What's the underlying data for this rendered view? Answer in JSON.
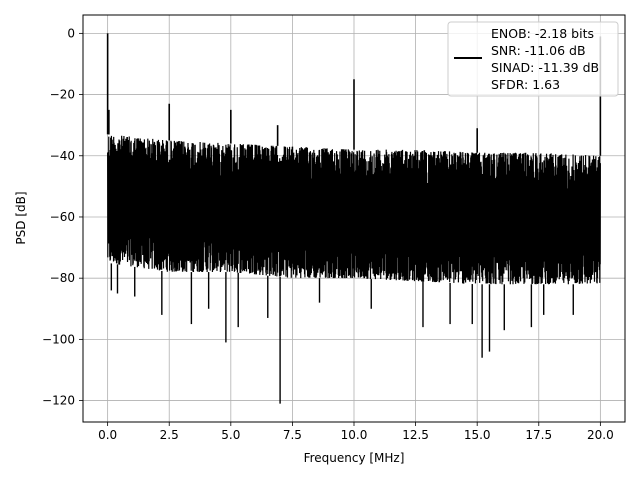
{
  "chart_data": {
    "type": "line",
    "xlabel": "Frequency [MHz]",
    "ylabel": "PSD [dB]",
    "xlim": [
      -1.0,
      21.0
    ],
    "ylim": [
      -127,
      6
    ],
    "x_ticks": [
      0.0,
      2.5,
      5.0,
      7.5,
      10.0,
      12.5,
      15.0,
      17.5,
      20.0
    ],
    "x_tick_labels": [
      "0.0",
      "2.5",
      "5.0",
      "7.5",
      "10.0",
      "12.5",
      "15.0",
      "17.5",
      "20.0"
    ],
    "y_ticks": [
      0,
      -20,
      -40,
      -60,
      -80,
      -100,
      -120
    ],
    "y_tick_labels": [
      "0",
      "−20",
      "−40",
      "−60",
      "−80",
      "−100",
      "−120"
    ],
    "grid": true,
    "legend_position": "top-right",
    "legend_entries": [
      "ENOB: -2.18 bits",
      "SNR: -11.06 dB",
      "SINAD: -11.39 dB",
      "SFDR: 1.63"
    ],
    "series_color": "#000000",
    "series": [
      {
        "noise_band": {
          "x_range": [
            0.0,
            20.0
          ],
          "upper_envelope": [
            [
              0.0,
              -33
            ],
            [
              2.5,
              -35
            ],
            [
              5.0,
              -36
            ],
            [
              7.5,
              -37
            ],
            [
              10.0,
              -38
            ],
            [
              12.5,
              -38
            ],
            [
              15.0,
              -39
            ],
            [
              17.5,
              -39
            ],
            [
              20.0,
              -40
            ]
          ],
          "lower_envelope": [
            [
              0.0,
              -75
            ],
            [
              2.5,
              -78
            ],
            [
              5.0,
              -78
            ],
            [
              7.5,
              -80
            ],
            [
              10.0,
              -80
            ],
            [
              12.5,
              -81
            ],
            [
              15.0,
              -82
            ],
            [
              17.5,
              -82
            ],
            [
              20.0,
              -82
            ]
          ]
        },
        "peaks": [
          {
            "x": 0.0,
            "y": 0
          },
          {
            "x": 0.05,
            "y": -25
          },
          {
            "x": 2.5,
            "y": -23
          },
          {
            "x": 5.0,
            "y": -25
          },
          {
            "x": 6.9,
            "y": -30
          },
          {
            "x": 10.0,
            "y": -15
          },
          {
            "x": 15.0,
            "y": -31
          },
          {
            "x": 20.0,
            "y": -1
          }
        ],
        "dips": [
          {
            "x": 0.15,
            "y": -84
          },
          {
            "x": 0.4,
            "y": -85
          },
          {
            "x": 1.1,
            "y": -86
          },
          {
            "x": 2.2,
            "y": -92
          },
          {
            "x": 3.4,
            "y": -95
          },
          {
            "x": 4.1,
            "y": -90
          },
          {
            "x": 4.8,
            "y": -101
          },
          {
            "x": 5.3,
            "y": -96
          },
          {
            "x": 6.5,
            "y": -93
          },
          {
            "x": 7.0,
            "y": -121
          },
          {
            "x": 8.6,
            "y": -88
          },
          {
            "x": 10.7,
            "y": -90
          },
          {
            "x": 12.8,
            "y": -96
          },
          {
            "x": 13.9,
            "y": -95
          },
          {
            "x": 14.8,
            "y": -95
          },
          {
            "x": 15.2,
            "y": -106
          },
          {
            "x": 15.5,
            "y": -104
          },
          {
            "x": 16.1,
            "y": -97
          },
          {
            "x": 17.2,
            "y": -96
          },
          {
            "x": 17.7,
            "y": -92
          },
          {
            "x": 18.9,
            "y": -92
          }
        ]
      }
    ]
  }
}
